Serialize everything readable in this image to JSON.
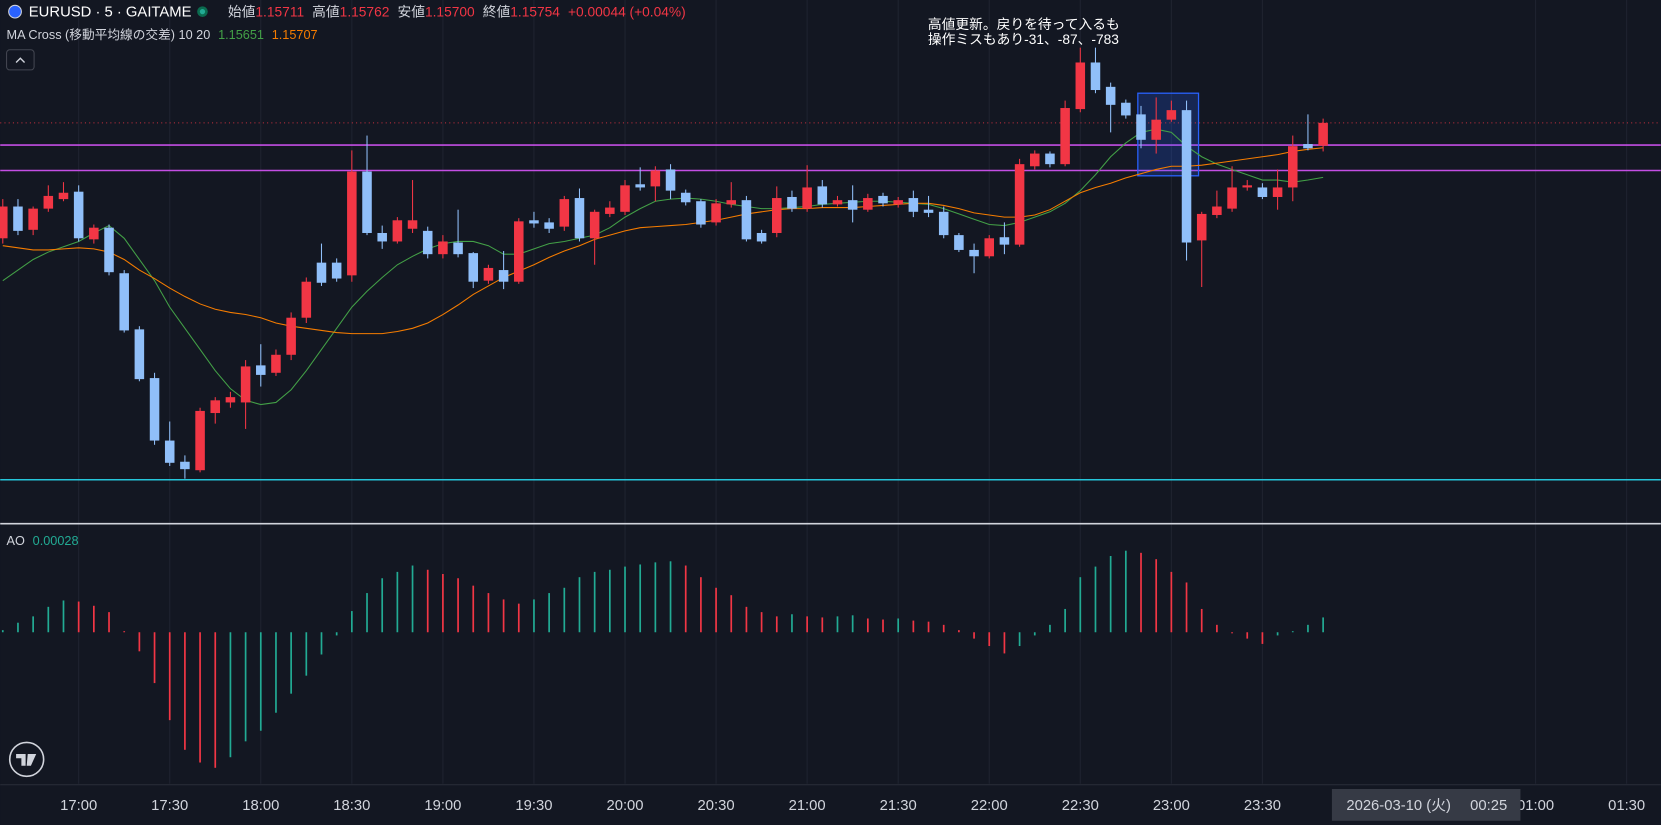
{
  "header": {
    "symbol": "EURUSD · 5 · GAITAME",
    "open_label": "始値",
    "open": "1.15711",
    "high_label": "高値",
    "high": "1.15762",
    "low_label": "安値",
    "low": "1.15700",
    "close_label": "終値",
    "close": "1.15754",
    "change": "+0.00044 (+0.04%)"
  },
  "annotations": [
    {
      "text": "高値更新。戻りを待って入るも"
    },
    {
      "text": "操作ミスもあり-31、-87、-783"
    }
  ],
  "chart_data": [
    {
      "type": "candlestick",
      "indicator": "MA Cross (移動平均線の交差) 10 20",
      "up_color": "#f23645",
      "down_color": "#90bff9",
      "xlim": [
        -0.17,
        109.25
      ],
      "ylim": [
        1.15,
        1.15986
      ],
      "xticks": [
        {
          "value": 5,
          "label": "17:00"
        },
        {
          "value": 11,
          "label": "17:30"
        },
        {
          "value": 17,
          "label": "18:00"
        },
        {
          "value": 23,
          "label": "18:30"
        },
        {
          "value": 29,
          "label": "19:00"
        },
        {
          "value": 35,
          "label": "19:30"
        },
        {
          "value": 41,
          "label": "20:00"
        },
        {
          "value": 47,
          "label": "20:30"
        },
        {
          "value": 53,
          "label": "21:00"
        },
        {
          "value": 59,
          "label": "21:30"
        },
        {
          "value": 65,
          "label": "22:00"
        },
        {
          "value": 71,
          "label": "22:30"
        },
        {
          "value": 77,
          "label": "23:00"
        },
        {
          "value": 83,
          "label": "23:30"
        },
        {
          "value": 101,
          "label": "01:00"
        },
        {
          "value": 107,
          "label": "01:30"
        }
      ],
      "crosshair": {
        "value": 94,
        "date": "2026-03-10 (火)",
        "time": "00:25"
      },
      "candles": [
        [
          1.15536,
          1.1561,
          1.15526,
          1.15596
        ],
        [
          1.15596,
          1.1561,
          1.15542,
          1.1555
        ],
        [
          1.15552,
          1.15596,
          1.15542,
          1.15592
        ],
        [
          1.15592,
          1.15636,
          1.15586,
          1.15616
        ],
        [
          1.1561,
          1.15642,
          1.15606,
          1.15622
        ],
        [
          1.15624,
          1.15636,
          1.1553,
          1.15536
        ],
        [
          1.15534,
          1.15562,
          1.15526,
          1.15556
        ],
        [
          1.15556,
          1.15562,
          1.15466,
          1.15472
        ],
        [
          1.1547,
          1.15476,
          1.15358,
          1.15362
        ],
        [
          1.15364,
          1.1537,
          1.15266,
          1.1527
        ],
        [
          1.15272,
          1.15282,
          1.15146,
          1.15154
        ],
        [
          1.15154,
          1.1519,
          1.15106,
          1.15112
        ],
        [
          1.15114,
          1.15126,
          1.15082,
          1.151
        ],
        [
          1.15098,
          1.15216,
          1.15094,
          1.1521
        ],
        [
          1.15206,
          1.15236,
          1.15186,
          1.1523
        ],
        [
          1.15226,
          1.15246,
          1.15216,
          1.15236
        ],
        [
          1.15226,
          1.15306,
          1.15176,
          1.15294
        ],
        [
          1.15296,
          1.15336,
          1.15256,
          1.15278
        ],
        [
          1.15282,
          1.15326,
          1.15276,
          1.15316
        ],
        [
          1.15316,
          1.15396,
          1.15306,
          1.15386
        ],
        [
          1.15386,
          1.15462,
          1.15376,
          1.15454
        ],
        [
          1.1549,
          1.15526,
          1.15446,
          1.15452
        ],
        [
          1.1549,
          1.15498,
          1.15454,
          1.1546
        ],
        [
          1.15466,
          1.15702,
          1.15454,
          1.15662
        ],
        [
          1.15662,
          1.1573,
          1.15542,
          1.15546
        ],
        [
          1.15546,
          1.1556,
          1.15516,
          1.1553
        ],
        [
          1.1553,
          1.15576,
          1.15526,
          1.1557
        ],
        [
          1.15554,
          1.15646,
          1.15546,
          1.1557
        ],
        [
          1.1555,
          1.15558,
          1.15498,
          1.15506
        ],
        [
          1.15506,
          1.15542,
          1.15498,
          1.1553
        ],
        [
          1.15528,
          1.1559,
          1.155,
          1.15506
        ],
        [
          1.15508,
          1.1551,
          1.15442,
          1.15454
        ],
        [
          1.15456,
          1.15486,
          1.1545,
          1.1548
        ],
        [
          1.15476,
          1.15512,
          1.1544,
          1.15454
        ],
        [
          1.15454,
          1.15574,
          1.1545,
          1.15568
        ],
        [
          1.1557,
          1.15586,
          1.15556,
          1.15564
        ],
        [
          1.15566,
          1.15574,
          1.15546,
          1.15554
        ],
        [
          1.15558,
          1.15616,
          1.1555,
          1.1561
        ],
        [
          1.15612,
          1.1563,
          1.1553,
          1.15536
        ],
        [
          1.15536,
          1.1559,
          1.15486,
          1.15586
        ],
        [
          1.15582,
          1.15606,
          1.15576,
          1.15594
        ],
        [
          1.15586,
          1.15646,
          1.1558,
          1.15636
        ],
        [
          1.15638,
          1.1567,
          1.15626,
          1.15632
        ],
        [
          1.15634,
          1.15672,
          1.15606,
          1.15664
        ],
        [
          1.15666,
          1.15676,
          1.1561,
          1.15626
        ],
        [
          1.15622,
          1.15628,
          1.15598,
          1.15604
        ],
        [
          1.15606,
          1.1561,
          1.15556,
          1.15562
        ],
        [
          1.15566,
          1.1561,
          1.1556,
          1.15602
        ],
        [
          1.156,
          1.15642,
          1.15594,
          1.15608
        ],
        [
          1.15608,
          1.15616,
          1.1553,
          1.15534
        ],
        [
          1.15546,
          1.15552,
          1.15526,
          1.1553
        ],
        [
          1.15546,
          1.15634,
          1.15538,
          1.15612
        ],
        [
          1.15614,
          1.15626,
          1.15586,
          1.15592
        ],
        [
          1.15592,
          1.15674,
          1.15586,
          1.15632
        ],
        [
          1.15634,
          1.15646,
          1.15594,
          1.156
        ],
        [
          1.156,
          1.15616,
          1.15596,
          1.15608
        ],
        [
          1.15608,
          1.15636,
          1.15566,
          1.1559
        ],
        [
          1.1559,
          1.1562,
          1.15586,
          1.15612
        ],
        [
          1.15616,
          1.15622,
          1.15596,
          1.15602
        ],
        [
          1.156,
          1.15614,
          1.15594,
          1.15608
        ],
        [
          1.15612,
          1.15626,
          1.15576,
          1.15586
        ],
        [
          1.1559,
          1.15616,
          1.15576,
          1.15584
        ],
        [
          1.15586,
          1.15596,
          1.15536,
          1.15542
        ],
        [
          1.15542,
          1.15546,
          1.1551,
          1.15514
        ],
        [
          1.15514,
          1.15526,
          1.1547,
          1.15502
        ],
        [
          1.15502,
          1.15542,
          1.15498,
          1.15536
        ],
        [
          1.15538,
          1.15566,
          1.15506,
          1.15524
        ],
        [
          1.15524,
          1.15686,
          1.1552,
          1.15676
        ],
        [
          1.15672,
          1.15702,
          1.15666,
          1.15696
        ],
        [
          1.15696,
          1.157,
          1.1567,
          1.15676
        ],
        [
          1.15676,
          1.15796,
          1.15672,
          1.15782
        ],
        [
          1.1578,
          1.15896,
          1.15774,
          1.15868
        ],
        [
          1.15868,
          1.15896,
          1.1581,
          1.15816
        ],
        [
          1.15822,
          1.1583,
          1.15736,
          1.15788
        ],
        [
          1.15792,
          1.15798,
          1.15762,
          1.15768
        ],
        [
          1.1577,
          1.15786,
          1.15706,
          1.15722
        ],
        [
          1.15722,
          1.15802,
          1.15696,
          1.1576
        ],
        [
          1.1576,
          1.15796,
          1.15756,
          1.15778
        ],
        [
          1.15778,
          1.15796,
          1.15494,
          1.15528
        ],
        [
          1.15532,
          1.15586,
          1.15444,
          1.15582
        ],
        [
          1.1558,
          1.15626,
          1.15574,
          1.15596
        ],
        [
          1.15592,
          1.15672,
          1.15586,
          1.15632
        ],
        [
          1.15632,
          1.15646,
          1.15626,
          1.15636
        ],
        [
          1.15632,
          1.1564,
          1.1561,
          1.15614
        ],
        [
          1.15614,
          1.15666,
          1.1559,
          1.15632
        ],
        [
          1.15632,
          1.1573,
          1.15606,
          1.1571
        ],
        [
          1.15714,
          1.1577,
          1.15702,
          1.15706
        ],
        [
          1.15711,
          1.15762,
          1.157,
          1.15754
        ]
      ],
      "series": [
        {
          "color": "#43a047",
          "values": [
            1.15456,
            1.15476,
            1.15496,
            1.1551,
            1.1552,
            1.1553,
            1.15546,
            1.1556,
            1.15536,
            1.15496,
            1.15456,
            1.15406,
            1.15366,
            1.15326,
            1.15286,
            1.15252,
            1.1523,
            1.15222,
            1.15226,
            1.1525,
            1.15286,
            1.15326,
            1.15366,
            1.15406,
            1.15436,
            1.15462,
            1.15486,
            1.15502,
            1.15516,
            1.15526,
            1.1553,
            1.1553,
            1.15522,
            1.15506,
            1.15506,
            1.15516,
            1.15526,
            1.1553,
            1.15536,
            1.15542,
            1.15556,
            1.15576,
            1.15592,
            1.15606,
            1.1561,
            1.15612,
            1.1561,
            1.15606,
            1.156,
            1.15596,
            1.15592,
            1.15592,
            1.15594,
            1.15596,
            1.156,
            1.15602,
            1.15604,
            1.15606,
            1.15606,
            1.15604,
            1.15602,
            1.156,
            1.15592,
            1.15582,
            1.15572,
            1.15562,
            1.1556,
            1.15566,
            1.15576,
            1.15586,
            1.15602,
            1.15626,
            1.15656,
            1.1569,
            1.15716,
            1.15736,
            1.15742,
            1.15736,
            1.1571,
            1.1569,
            1.15676,
            1.15666,
            1.15656,
            1.15646,
            1.15646,
            1.15642,
            1.15646,
            1.15651
          ]
        },
        {
          "color": "#f57c00",
          "values": [
            1.15522,
            1.15518,
            1.15514,
            1.15514,
            1.15516,
            1.15518,
            1.15516,
            1.1551,
            1.15496,
            1.15476,
            1.1546,
            1.15442,
            1.15426,
            1.15412,
            1.15402,
            1.15396,
            1.15392,
            1.15386,
            1.15376,
            1.1537,
            1.15366,
            1.15362,
            1.15358,
            1.15356,
            1.15356,
            1.15356,
            1.1536,
            1.15366,
            1.15376,
            1.15392,
            1.1541,
            1.1543,
            1.15446,
            1.15462,
            1.15474,
            1.15486,
            1.155,
            1.15512,
            1.15522,
            1.15534,
            1.15542,
            1.1555,
            1.15556,
            1.15558,
            1.1556,
            1.15562,
            1.15566,
            1.1557,
            1.15576,
            1.15582,
            1.15586,
            1.1559,
            1.15592,
            1.15592,
            1.15594,
            1.15594,
            1.15594,
            1.15596,
            1.15598,
            1.156,
            1.15602,
            1.15602,
            1.15598,
            1.15592,
            1.15584,
            1.1558,
            1.15576,
            1.15576,
            1.1558,
            1.1559,
            1.15606,
            1.15622,
            1.15632,
            1.1564,
            1.1565,
            1.15658,
            1.15666,
            1.15672,
            1.15672,
            1.15674,
            1.15678,
            1.15682,
            1.15686,
            1.1569,
            1.15694,
            1.157,
            1.15704,
            1.15707
          ]
        }
      ],
      "hlines": [
        {
          "value": 1.15712,
          "color": "#c34ee3"
        },
        {
          "value": 1.15664,
          "color": "#c34ee3"
        },
        {
          "value": 1.1508,
          "color": "#26c6da"
        }
      ],
      "box": {
        "from": 75,
        "to": 79,
        "top": 1.1581,
        "bottom": 1.15654,
        "color": "#2962ff"
      }
    },
    {
      "type": "bar",
      "title": "AO",
      "up_color": "#22ab94",
      "down_color": "#f23645",
      "ylim": [
        -0.00286,
        0.002
      ],
      "values": [
        4e-05,
        0.00018,
        0.0003,
        0.00048,
        0.0006,
        0.00058,
        0.0005,
        0.00038,
        2e-05,
        -0.00036,
        -0.00096,
        -0.00166,
        -0.00222,
        -0.00246,
        -0.00256,
        -0.00236,
        -0.00206,
        -0.00186,
        -0.00152,
        -0.00116,
        -0.00082,
        -0.00042,
        -6e-05,
        0.0004,
        0.00074,
        0.00102,
        0.00114,
        0.00126,
        0.00118,
        0.0011,
        0.00102,
        0.00088,
        0.00074,
        0.00062,
        0.00054,
        0.00062,
        0.00074,
        0.00084,
        0.00104,
        0.00114,
        0.00118,
        0.00124,
        0.00128,
        0.00132,
        0.00134,
        0.00126,
        0.00104,
        0.00084,
        0.0007,
        0.00048,
        0.00038,
        0.0003,
        0.00034,
        0.0003,
        0.00028,
        0.0003,
        0.00032,
        0.00026,
        0.00024,
        0.00026,
        0.00022,
        0.0002,
        0.00014,
        4e-05,
        -0.00012,
        -0.00026,
        -0.0004,
        -0.00026,
        -6e-05,
        0.00014,
        0.00044,
        0.00104,
        0.00124,
        0.00144,
        0.00154,
        0.0015,
        0.00138,
        0.00114,
        0.00094,
        0.00044,
        0.00014,
        -2e-05,
        -0.00012,
        -0.00022,
        -6e-05,
        2e-05,
        0.00014,
        0.00028
      ]
    }
  ]
}
